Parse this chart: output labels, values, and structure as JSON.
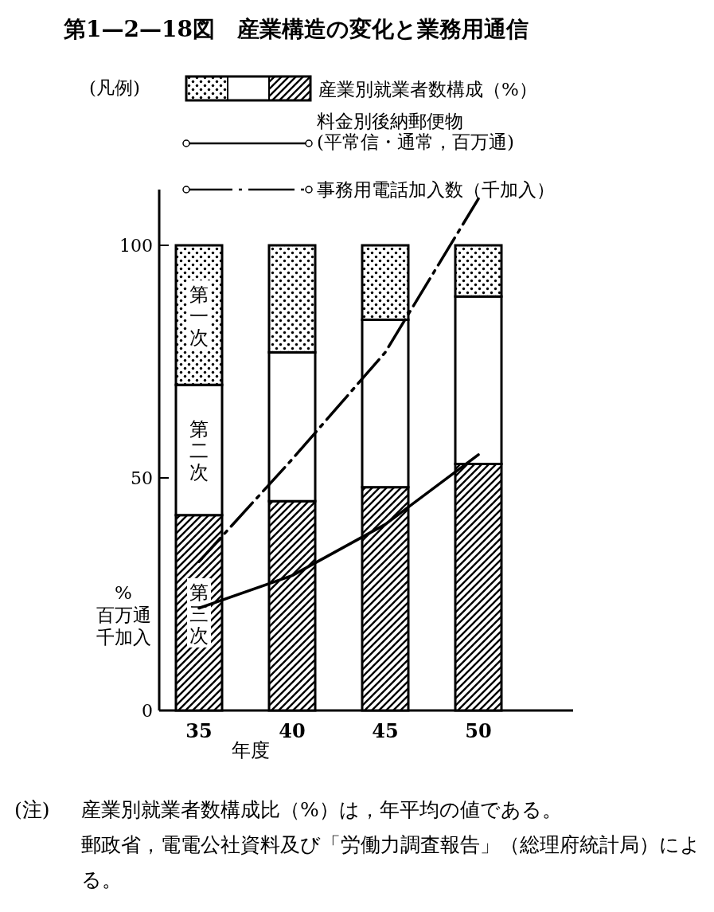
{
  "chart_data": {
    "type": "bar",
    "stacked": true,
    "title": "第1—2—18図　産業構造の変化と業務用通信",
    "legend_title": "(凡例)",
    "xlabel": "年度",
    "ylabel": "%百万通千加入",
    "categories": [
      "35",
      "40",
      "45",
      "50"
    ],
    "ylim": [
      0,
      112
    ],
    "yticks": [
      0,
      50,
      100
    ],
    "legend": "top",
    "series": [
      {
        "name": "第三次",
        "color": "#000000",
        "values": [
          42,
          45,
          48,
          53
        ]
      },
      {
        "name": "第二次",
        "color": "#ffffff",
        "values": [
          28,
          32,
          36,
          36
        ]
      },
      {
        "name": "第一次",
        "color": "#000000",
        "values": [
          30,
          23,
          16,
          11
        ]
      },
      {
        "type": "line",
        "name": "料金別後納郵便物\n(平常信・通常，百万通)",
        "color": "#000000",
        "line_style": "solid",
        "values": [
          22,
          29,
          40,
          55
        ]
      },
      {
        "type": "line",
        "name": "事務用電話加入数（千加入）",
        "color": "#000000",
        "line_style": "dashed",
        "values": [
          32,
          54,
          77,
          110
        ]
      }
    ],
    "annotations": [
      "産業別就業者数構成（%）",
      "(注)",
      "産業別就業者数構成比（%）は，年平均の値である。",
      "郵政省，電電公社資料及び「労働力調査報告」（総理府統計局）による。"
    ]
  }
}
